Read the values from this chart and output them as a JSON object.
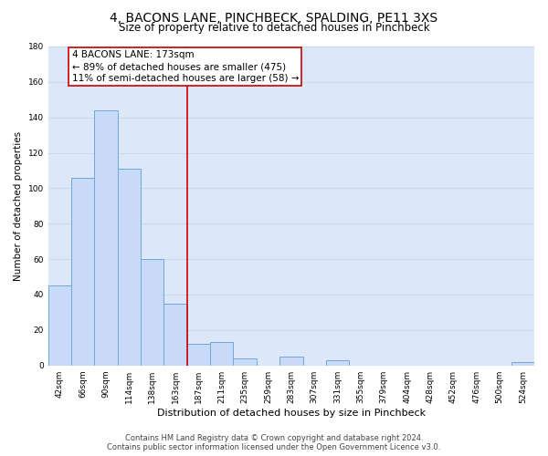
{
  "title": "4, BACONS LANE, PINCHBECK, SPALDING, PE11 3XS",
  "subtitle": "Size of property relative to detached houses in Pinchbeck",
  "xlabel": "Distribution of detached houses by size in Pinchbeck",
  "ylabel": "Number of detached properties",
  "bar_labels": [
    "42sqm",
    "66sqm",
    "90sqm",
    "114sqm",
    "138sqm",
    "163sqm",
    "187sqm",
    "211sqm",
    "235sqm",
    "259sqm",
    "283sqm",
    "307sqm",
    "331sqm",
    "355sqm",
    "379sqm",
    "404sqm",
    "428sqm",
    "452sqm",
    "476sqm",
    "500sqm",
    "524sqm"
  ],
  "bar_values": [
    45,
    106,
    144,
    111,
    60,
    35,
    12,
    13,
    4,
    0,
    5,
    0,
    3,
    0,
    0,
    0,
    0,
    0,
    0,
    0,
    2
  ],
  "bar_color": "#c9daf8",
  "bar_edgecolor": "#6fa8dc",
  "annotation_box_text": "4 BACONS LANE: 173sqm\n← 89% of detached houses are smaller (475)\n11% of semi-detached houses are larger (58) →",
  "red_line_x": 5.5,
  "ylim": [
    0,
    180
  ],
  "yticks": [
    0,
    20,
    40,
    60,
    80,
    100,
    120,
    140,
    160,
    180
  ],
  "grid_color": "#c9d9f0",
  "bg_color": "#dce8f8",
  "footer": "Contains HM Land Registry data © Crown copyright and database right 2024.\nContains public sector information licensed under the Open Government Licence v3.0.",
  "title_fontsize": 10,
  "subtitle_fontsize": 8.5,
  "xlabel_fontsize": 8,
  "ylabel_fontsize": 7.5,
  "tick_fontsize": 6.5,
  "annotation_fontsize": 7.5,
  "footer_fontsize": 6
}
